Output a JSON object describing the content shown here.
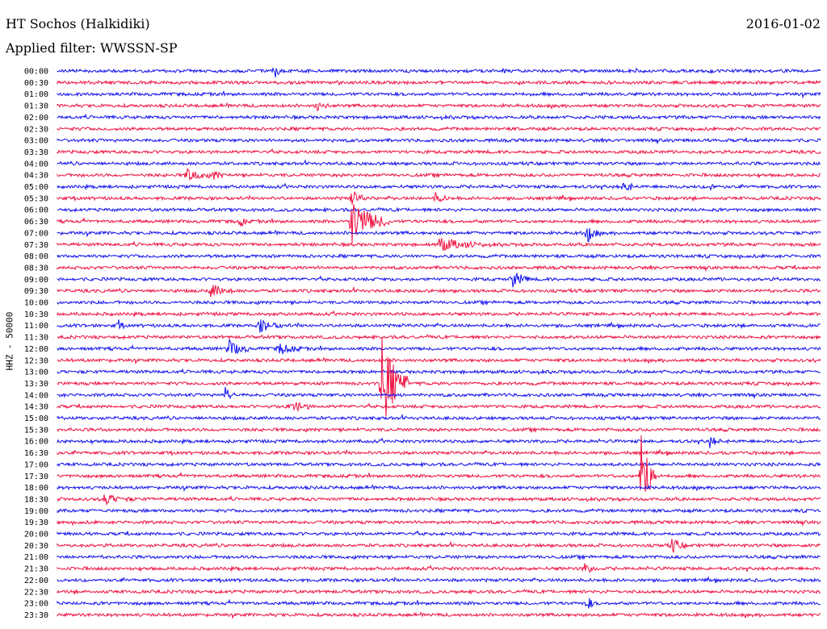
{
  "header": {
    "station": "HT Sochos (Halkidiki)",
    "date": "2016-01-02",
    "filter": "Applied filter: WWSSN-SP"
  },
  "chart_data": {
    "type": "line",
    "title": "HT Sochos (Halkidiki)",
    "ylabel": "HHZ - 50000",
    "grid": false,
    "colors": {
      "even_hour_trace": "#1010ee",
      "half_hour_trace": "#ee1040"
    },
    "tick_labels": [
      "00:00",
      "00:30",
      "01:00",
      "01:30",
      "02:00",
      "02:30",
      "03:00",
      "03:30",
      "04:00",
      "04:30",
      "05:00",
      "05:30",
      "06:00",
      "06:30",
      "07:00",
      "07:30",
      "08:00",
      "08:30",
      "09:00",
      "09:30",
      "10:00",
      "10:30",
      "11:00",
      "11:30",
      "12:00",
      "12:30",
      "13:00",
      "13:30",
      "14:00",
      "14:30",
      "15:00",
      "15:30",
      "16:00",
      "16:30",
      "17:00",
      "17:30",
      "18:00",
      "18:30",
      "19:00",
      "19:30",
      "20:00",
      "20:30",
      "21:00",
      "21:30",
      "22:00",
      "22:30",
      "23:00",
      "23:30"
    ],
    "events": [
      {
        "trace": 0,
        "x_frac": 0.285,
        "amp": 8,
        "dur": 0.01
      },
      {
        "trace": 3,
        "x_frac": 0.34,
        "amp": 7,
        "dur": 0.015
      },
      {
        "trace": 9,
        "x_frac": 0.17,
        "amp": 9,
        "dur": 0.03
      },
      {
        "trace": 9,
        "x_frac": 0.205,
        "amp": 6,
        "dur": 0.015
      },
      {
        "trace": 10,
        "x_frac": 0.742,
        "amp": 9,
        "dur": 0.015
      },
      {
        "trace": 10,
        "x_frac": 0.855,
        "amp": 6,
        "dur": 0.01
      },
      {
        "trace": 11,
        "x_frac": 0.385,
        "amp": 10,
        "dur": 0.02
      },
      {
        "trace": 11,
        "x_frac": 0.495,
        "amp": 6,
        "dur": 0.02
      },
      {
        "trace": 13,
        "x_frac": 0.385,
        "amp": 28,
        "dur": 0.05
      },
      {
        "trace": 13,
        "x_frac": 0.24,
        "amp": 8,
        "dur": 0.008
      },
      {
        "trace": 14,
        "x_frac": 0.695,
        "amp": 12,
        "dur": 0.015
      },
      {
        "trace": 15,
        "x_frac": 0.5,
        "amp": 8,
        "dur": 0.06
      },
      {
        "trace": 18,
        "x_frac": 0.595,
        "amp": 11,
        "dur": 0.025
      },
      {
        "trace": 19,
        "x_frac": 0.2,
        "amp": 9,
        "dur": 0.03
      },
      {
        "trace": 22,
        "x_frac": 0.08,
        "amp": 7,
        "dur": 0.008
      },
      {
        "trace": 22,
        "x_frac": 0.265,
        "amp": 8,
        "dur": 0.03
      },
      {
        "trace": 24,
        "x_frac": 0.225,
        "amp": 10,
        "dur": 0.03
      },
      {
        "trace": 24,
        "x_frac": 0.29,
        "amp": 7,
        "dur": 0.03
      },
      {
        "trace": 27,
        "x_frac": 0.425,
        "amp": 58,
        "dur": 0.035
      },
      {
        "trace": 28,
        "x_frac": 0.22,
        "amp": 9,
        "dur": 0.012
      },
      {
        "trace": 29,
        "x_frac": 0.305,
        "amp": 8,
        "dur": 0.03
      },
      {
        "trace": 32,
        "x_frac": 0.855,
        "amp": 7,
        "dur": 0.015
      },
      {
        "trace": 35,
        "x_frac": 0.765,
        "amp": 65,
        "dur": 0.02
      },
      {
        "trace": 37,
        "x_frac": 0.06,
        "amp": 6,
        "dur": 0.04
      },
      {
        "trace": 41,
        "x_frac": 0.805,
        "amp": 9,
        "dur": 0.02
      },
      {
        "trace": 43,
        "x_frac": 0.69,
        "amp": 6,
        "dur": 0.02
      },
      {
        "trace": 46,
        "x_frac": 0.695,
        "amp": 10,
        "dur": 0.008
      }
    ]
  }
}
